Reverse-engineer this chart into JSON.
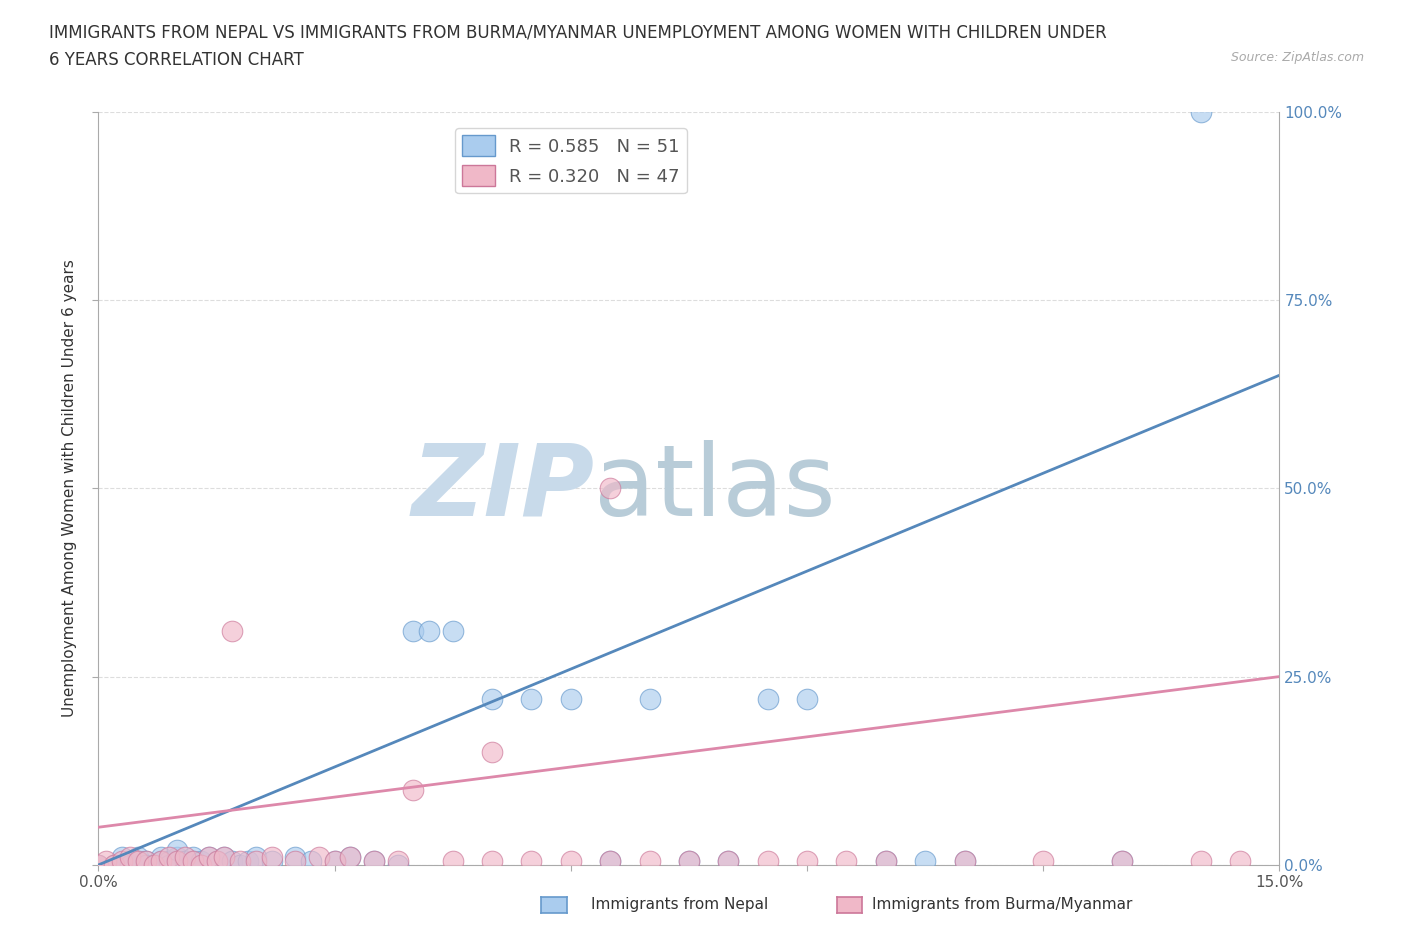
{
  "title_line1": "IMMIGRANTS FROM NEPAL VS IMMIGRANTS FROM BURMA/MYANMAR UNEMPLOYMENT AMONG WOMEN WITH CHILDREN UNDER",
  "title_line2": "6 YEARS CORRELATION CHART",
  "source": "Source: ZipAtlas.com",
  "ylabel": "Unemployment Among Women with Children Under 6 years",
  "xlim": [
    0,
    0.15
  ],
  "ylim": [
    0,
    1.0
  ],
  "xticks": [
    0.0,
    0.03,
    0.06,
    0.09,
    0.12,
    0.15
  ],
  "xtick_labels": [
    "0.0%",
    "",
    "",
    "",
    "",
    "15.0%"
  ],
  "yticks": [
    0.0,
    0.25,
    0.5,
    0.75,
    1.0
  ],
  "ytick_labels_right_blue": [
    "0.0%",
    "25.0%",
    "50.0%",
    "75.0%",
    "100.0%"
  ],
  "nepal_fill_color": "#aaccee",
  "nepal_edge_color": "#6699cc",
  "burma_fill_color": "#f0b8c8",
  "burma_edge_color": "#cc7799",
  "nepal_line_color": "#5588bb",
  "burma_line_color": "#dd88aa",
  "nepal_R": 0.585,
  "nepal_N": 51,
  "burma_R": 0.32,
  "burma_N": 47,
  "nepal_line_x": [
    0.0,
    0.15
  ],
  "nepal_line_y": [
    0.0,
    0.65
  ],
  "burma_line_x": [
    0.0,
    0.15
  ],
  "burma_line_y": [
    0.05,
    0.25
  ],
  "nepal_scatter_x": [
    0.0,
    0.002,
    0.003,
    0.004,
    0.005,
    0.005,
    0.006,
    0.006,
    0.007,
    0.008,
    0.008,
    0.009,
    0.009,
    0.01,
    0.01,
    0.01,
    0.011,
    0.012,
    0.012,
    0.013,
    0.014,
    0.015,
    0.016,
    0.017,
    0.018,
    0.019,
    0.02,
    0.022,
    0.025,
    0.027,
    0.03,
    0.032,
    0.035,
    0.038,
    0.04,
    0.042,
    0.045,
    0.05,
    0.055,
    0.06,
    0.065,
    0.07,
    0.075,
    0.08,
    0.085,
    0.09,
    0.1,
    0.105,
    0.11,
    0.13,
    0.14
  ],
  "nepal_scatter_y": [
    0.0,
    0.0,
    0.01,
    0.0,
    0.005,
    0.01,
    0.005,
    0.0,
    0.0,
    0.005,
    0.01,
    0.005,
    0.0,
    0.005,
    0.01,
    0.02,
    0.005,
    0.005,
    0.01,
    0.005,
    0.01,
    0.005,
    0.01,
    0.005,
    0.0,
    0.005,
    0.01,
    0.005,
    0.01,
    0.005,
    0.005,
    0.01,
    0.005,
    0.0,
    0.31,
    0.31,
    0.31,
    0.22,
    0.22,
    0.22,
    0.005,
    0.22,
    0.005,
    0.005,
    0.22,
    0.22,
    0.005,
    0.005,
    0.005,
    0.005,
    1.0
  ],
  "burma_scatter_x": [
    0.0,
    0.001,
    0.002,
    0.003,
    0.004,
    0.005,
    0.006,
    0.007,
    0.008,
    0.009,
    0.01,
    0.011,
    0.012,
    0.013,
    0.014,
    0.015,
    0.016,
    0.017,
    0.018,
    0.02,
    0.022,
    0.025,
    0.028,
    0.03,
    0.032,
    0.035,
    0.038,
    0.04,
    0.045,
    0.05,
    0.055,
    0.06,
    0.065,
    0.07,
    0.075,
    0.08,
    0.085,
    0.09,
    0.095,
    0.1,
    0.11,
    0.12,
    0.13,
    0.14,
    0.145,
    0.05,
    0.065
  ],
  "burma_scatter_y": [
    0.0,
    0.005,
    0.0,
    0.005,
    0.01,
    0.005,
    0.005,
    0.0,
    0.005,
    0.01,
    0.005,
    0.01,
    0.005,
    0.0,
    0.01,
    0.005,
    0.01,
    0.31,
    0.005,
    0.005,
    0.01,
    0.005,
    0.01,
    0.005,
    0.01,
    0.005,
    0.005,
    0.1,
    0.005,
    0.005,
    0.005,
    0.005,
    0.005,
    0.005,
    0.005,
    0.005,
    0.005,
    0.005,
    0.005,
    0.005,
    0.005,
    0.005,
    0.005,
    0.005,
    0.005,
    0.15,
    0.5
  ],
  "background_color": "#ffffff",
  "grid_color": "#dddddd",
  "watermark_zip": "ZIP",
  "watermark_atlas": "atlas",
  "watermark_color_zip": "#c8daea",
  "watermark_color_atlas": "#b8ccd8",
  "legend_nepal_label": "R = 0.585   N = 51",
  "legend_burma_label": "R = 0.320   N = 47",
  "bottom_legend_nepal": "Immigrants from Nepal",
  "bottom_legend_burma": "Immigrants from Burma/Myanmar"
}
